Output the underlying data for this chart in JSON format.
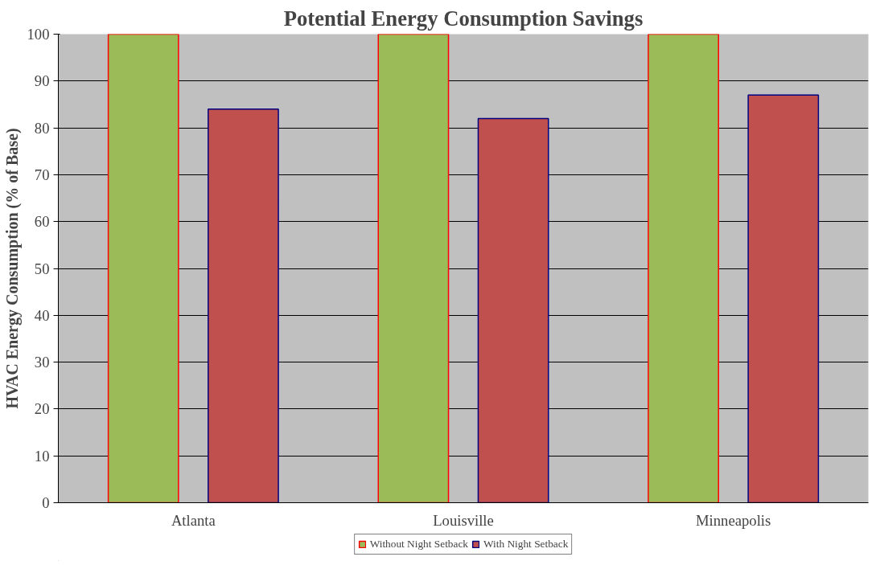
{
  "chart_data": {
    "type": "bar",
    "title": "Potential Energy Consumption Savings",
    "ylabel": "HVAC Energy Consumption (% of Base)",
    "categories": [
      "Atlanta",
      "Louisville",
      "Minneapolis"
    ],
    "series": [
      {
        "name": "Without Night Setback",
        "color": "#9bbb59",
        "values": [
          100,
          100,
          100
        ]
      },
      {
        "name": "With Night Setback",
        "color": "#c0504d",
        "values": [
          84,
          82,
          87
        ]
      }
    ],
    "ylim": [
      0,
      100
    ],
    "yticks": [
      0,
      10,
      20,
      30,
      40,
      50,
      60,
      70,
      80,
      90,
      100
    ],
    "grid": "y",
    "legend": "bottom"
  }
}
